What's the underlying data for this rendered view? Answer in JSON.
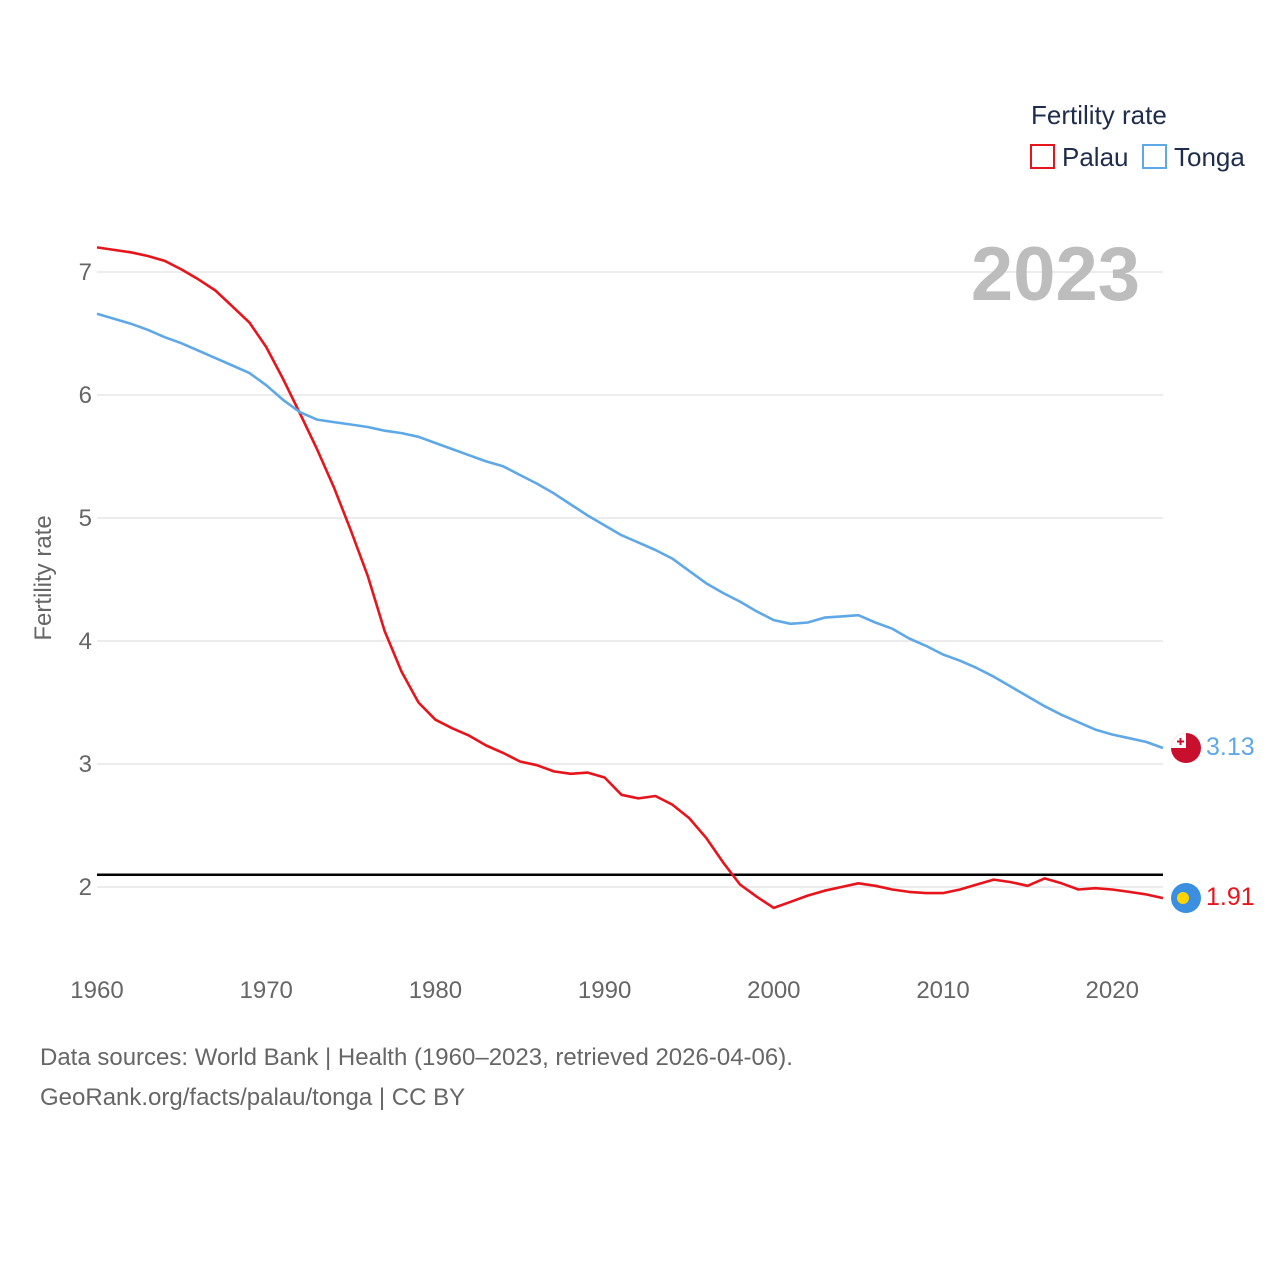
{
  "colors": {
    "palau": "#e8141b",
    "tonga": "#5fa8e8",
    "reference_line": "#000000",
    "grid": "#e6e6e6",
    "year_label": "#bdbdbd"
  },
  "chart_data": {
    "type": "line",
    "title": "",
    "xlabel": "",
    "ylabel": "Fertility rate",
    "xlim": [
      1960,
      2023
    ],
    "ylim": [
      1.4,
      7.6
    ],
    "x_ticks": [
      1960,
      1970,
      1980,
      1990,
      2000,
      2010,
      2020
    ],
    "y_ticks": [
      2,
      3,
      4,
      5,
      6,
      7
    ],
    "grid": true,
    "year_label": "2023",
    "legend": {
      "title": "Fertility rate",
      "position": "top-right",
      "entries": [
        "Palau",
        "Tonga"
      ]
    },
    "reference_line": {
      "y": 2.1,
      "label": ""
    },
    "x": [
      1960,
      1961,
      1962,
      1963,
      1964,
      1965,
      1966,
      1967,
      1968,
      1969,
      1970,
      1971,
      1972,
      1973,
      1974,
      1975,
      1976,
      1977,
      1978,
      1979,
      1980,
      1981,
      1982,
      1983,
      1984,
      1985,
      1986,
      1987,
      1988,
      1989,
      1990,
      1991,
      1992,
      1993,
      1994,
      1995,
      1996,
      1997,
      1998,
      1999,
      2000,
      2001,
      2002,
      2003,
      2004,
      2005,
      2006,
      2007,
      2008,
      2009,
      2010,
      2011,
      2012,
      2013,
      2014,
      2015,
      2016,
      2017,
      2018,
      2019,
      2020,
      2021,
      2022,
      2023
    ],
    "series": [
      {
        "name": "Palau",
        "end_value_label": "1.91",
        "flag_icon": "palau-flag-icon",
        "values": [
          7.2,
          7.18,
          7.16,
          7.13,
          7.09,
          7.02,
          6.94,
          6.85,
          6.72,
          6.59,
          6.39,
          6.13,
          5.85,
          5.56,
          5.25,
          4.9,
          4.53,
          4.08,
          3.75,
          3.5,
          3.36,
          3.29,
          3.23,
          3.15,
          3.09,
          3.02,
          2.99,
          2.94,
          2.92,
          2.93,
          2.89,
          2.75,
          2.72,
          2.74,
          2.67,
          2.56,
          2.4,
          2.2,
          2.02,
          1.92,
          1.83,
          1.88,
          1.93,
          1.97,
          2.0,
          2.03,
          2.01,
          1.98,
          1.96,
          1.95,
          1.95,
          1.98,
          2.02,
          2.06,
          2.04,
          2.01,
          2.07,
          2.03,
          1.98,
          1.99,
          1.98,
          1.96,
          1.94,
          1.91
        ]
      },
      {
        "name": "Tonga",
        "end_value_label": "3.13",
        "flag_icon": "tonga-flag-icon",
        "values": [
          6.66,
          6.62,
          6.58,
          6.53,
          6.47,
          6.42,
          6.36,
          6.3,
          6.24,
          6.18,
          6.08,
          5.96,
          5.86,
          5.8,
          5.78,
          5.76,
          5.74,
          5.71,
          5.69,
          5.66,
          5.61,
          5.56,
          5.51,
          5.46,
          5.42,
          5.35,
          5.28,
          5.2,
          5.11,
          5.02,
          4.94,
          4.86,
          4.8,
          4.74,
          4.67,
          4.57,
          4.47,
          4.39,
          4.32,
          4.24,
          4.17,
          4.14,
          4.15,
          4.19,
          4.2,
          4.21,
          4.15,
          4.1,
          4.02,
          3.96,
          3.89,
          3.84,
          3.78,
          3.71,
          3.63,
          3.55,
          3.47,
          3.4,
          3.34,
          3.28,
          3.24,
          3.21,
          3.18,
          3.13
        ]
      }
    ]
  },
  "footer": {
    "sources": "Data sources: World Bank | Health (1960–2023, retrieved 2026-04-06).",
    "credit": "GeoRank.org/facts/palau/tonga | CC BY"
  }
}
